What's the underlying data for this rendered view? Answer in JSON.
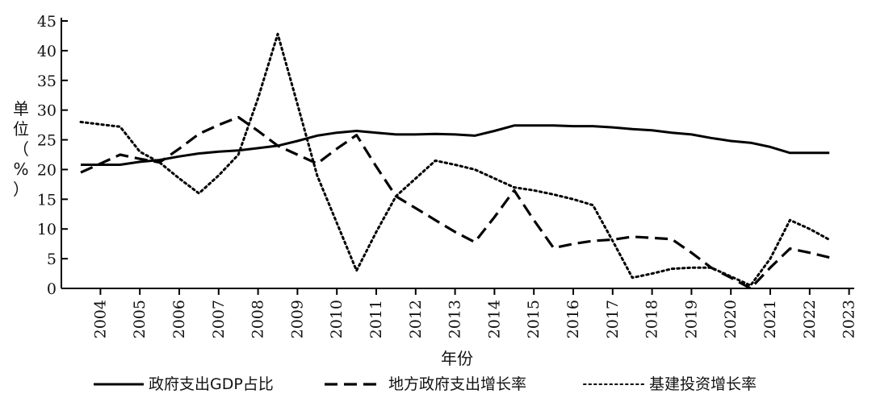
{
  "chart_data": {
    "type": "line",
    "title": "",
    "xlabel": "年份",
    "ylabel_chars": [
      "单",
      "位",
      "（",
      "%",
      "）"
    ],
    "ylim": [
      0,
      45
    ],
    "yticks": [
      0,
      5,
      10,
      15,
      20,
      25,
      30,
      35,
      40,
      45
    ],
    "x_ticks": [
      "2004",
      "2005",
      "2006",
      "2007",
      "2008",
      "2009",
      "2010",
      "2011",
      "2012",
      "2013",
      "2014",
      "2015",
      "2016",
      "2017",
      "2018",
      "2019",
      "2020",
      "2021",
      "2022",
      "2023"
    ],
    "x": [
      2003.5,
      2004,
      2004.5,
      2005,
      2005.5,
      2006,
      2006.5,
      2007,
      2007.5,
      2008,
      2008.5,
      2009,
      2009.5,
      2010,
      2010.5,
      2011,
      2011.5,
      2012,
      2012.5,
      2013,
      2013.5,
      2014,
      2014.5,
      2015,
      2015.5,
      2016,
      2016.5,
      2017,
      2017.5,
      2018,
      2018.5,
      2019,
      2019.5,
      2020,
      2020.5,
      2021,
      2021.5,
      2022,
      2022.5
    ],
    "xlim": [
      2003.5,
      2023
    ],
    "legend_position": "bottom",
    "series": [
      {
        "name": "政府支出GDP占比",
        "style": "solid",
        "values": [
          20.8,
          20.8,
          20.8,
          21.3,
          21.6,
          22.2,
          22.7,
          23.0,
          23.2,
          23.6,
          24.0,
          24.8,
          25.7,
          26.2,
          26.5,
          26.2,
          25.9,
          25.9,
          26.0,
          25.9,
          25.7,
          26.5,
          27.4,
          27.4,
          27.4,
          27.3,
          27.3,
          27.1,
          26.8,
          26.6,
          26.2,
          25.9,
          25.3,
          24.8,
          24.5,
          23.8,
          22.8,
          22.8,
          22.8
        ]
      },
      {
        "name": "地方政府支出增长率",
        "style": "dashed",
        "values": [
          19.5,
          21.0,
          22.5,
          21.8,
          21.2,
          23.5,
          26.0,
          27.5,
          28.8,
          26.5,
          24.0,
          22.5,
          21.0,
          23.5,
          25.8,
          20.5,
          15.5,
          13.5,
          11.5,
          9.5,
          7.8,
          12.0,
          16.5,
          11.5,
          6.8,
          7.5,
          8.0,
          8.2,
          8.7,
          8.5,
          8.3,
          6.0,
          3.5,
          1.8,
          0.0,
          3.5,
          6.7,
          6.0,
          5.2
        ]
      },
      {
        "name": "基建投资增长率",
        "style": "dotted",
        "values": [
          28.0,
          27.6,
          27.2,
          23.0,
          21.2,
          18.5,
          16.0,
          19.0,
          22.5,
          32.0,
          42.8,
          31.0,
          19.0,
          11.0,
          3.0,
          9.5,
          15.5,
          18.5,
          21.5,
          20.8,
          20.0,
          18.5,
          17.0,
          16.5,
          15.8,
          15.0,
          14.0,
          8.0,
          1.8,
          2.5,
          3.3,
          3.5,
          3.5,
          2.0,
          0.5,
          5.0,
          11.5,
          10.0,
          8.2
        ]
      }
    ]
  }
}
